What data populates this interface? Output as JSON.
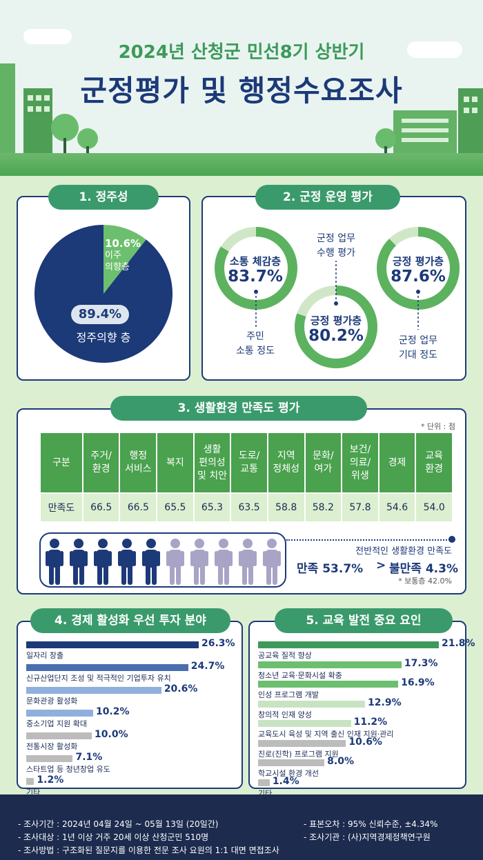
{
  "header": {
    "subtitle": "2024년 산청군 민선8기 상반기",
    "title": "군정평가 및 행정수요조사"
  },
  "section1": {
    "title": "1. 정주성",
    "move_pct": "10.6%",
    "move_label": "이주\n의향층",
    "stay_pct": "89.4%",
    "stay_label": "정주의향 층",
    "chart_data": {
      "type": "pie",
      "categories": [
        "이주 의향층",
        "정주의향 층"
      ],
      "values": [
        10.6,
        89.4
      ],
      "colors": [
        "#6cbf6e",
        "#1c3978"
      ]
    }
  },
  "section2": {
    "title": "2. 군정 운영 평가",
    "donuts": [
      {
        "label": "소통 체감층",
        "value": "83.7%",
        "caption": "주민\n소통 정도",
        "num": 83.7
      },
      {
        "label": "긍정 평가층",
        "value": "80.2%",
        "caption": "군정 업무\n수행 평가",
        "num": 80.2
      },
      {
        "label": "긍정 평가층",
        "value": "87.6%",
        "caption": "군정 업무\n기대 정도",
        "num": 87.6
      }
    ],
    "ring_color": "#5cb25f",
    "ring_bg": "#cfe7c6"
  },
  "section3": {
    "title": "3. 생활환경 만족도 평가",
    "unit": "* 단위 : 점",
    "headers": [
      "구분",
      "주거/\n환경",
      "행정\n서비스",
      "복지",
      "생활\n편의성\n및 치안",
      "도로/\n교통",
      "지역\n정체성",
      "문화/\n여가",
      "보건/\n의료/\n위생",
      "경제",
      "교육\n환경"
    ],
    "row_label": "만족도",
    "values": [
      "66.5",
      "66.5",
      "65.5",
      "65.3",
      "63.5",
      "58.8",
      "58.2",
      "57.8",
      "54.6",
      "54.0"
    ],
    "overall_label": "전반적인 생활환경 만족도",
    "satisfied": "만족 53.7%",
    "gt": ">",
    "dissatisfied": "불만족 4.3%",
    "normal": "* 보통층 42.0%",
    "people_filled": 5,
    "people_total": 10
  },
  "section4": {
    "title": "4. 경제 활성화 우선 투자 분야",
    "chart_data": {
      "type": "bar",
      "categories": [
        "일자리 창출",
        "신규산업단지 조성 및 적극적인 기업투자 유치",
        "문화관광 활성화",
        "중소기업 지원 확대",
        "전통시장 활성화",
        "스타트업 등 청년창업 유도",
        "기타"
      ],
      "values": [
        26.3,
        24.7,
        20.6,
        10.2,
        10.0,
        7.1,
        1.2
      ]
    },
    "value_labels": [
      "26.3%",
      "24.7%",
      "20.6%",
      "10.2%",
      "10.0%",
      "7.1%",
      "1.2%"
    ],
    "colors": [
      "#1c3978",
      "#4a6fb0",
      "#8fb0dc",
      "#8fb0dc",
      "#bcbcbc",
      "#bcbcbc",
      "#bcbcbc"
    ]
  },
  "section5": {
    "title": "5. 교육 발전 중요 요인",
    "chart_data": {
      "type": "bar",
      "categories": [
        "공교육 질적 향상",
        "청소년 교육·문화시설 확충",
        "인성 프로그램 개발",
        "창의적 인재 양성",
        "교육도시 육성 및 지역 출신 인재 지원·관리",
        "진로(진학) 프로그램 지원",
        "학교시설 환경 개선",
        "기타"
      ],
      "values": [
        21.8,
        17.3,
        16.9,
        12.9,
        11.2,
        10.6,
        8.0,
        1.4
      ]
    },
    "value_labels": [
      "21.8%",
      "17.3%",
      "16.9%",
      "12.9%",
      "11.2%",
      "10.6%",
      "8.0%",
      "1.4%"
    ],
    "colors": [
      "#3d9a5a",
      "#6cbf6e",
      "#6cbf6e",
      "#c8e3c2",
      "#c8e3c2",
      "#bcbcbc",
      "#bcbcbc",
      "#bcbcbc"
    ]
  },
  "footer": {
    "period": "- 조사기간 : 2024년 04월 24일 ~ 05월 13일 (20일간)",
    "target": "- 조사대상 : 1년 이상 거주 20세 이상 산청군민 510명",
    "method": "- 조사방법 : 구조화된 질문지를 이용한 전문 조사 요원의 1:1 대면 면접조사",
    "error": "- 표본오차 : 95% 신뢰수준, ±4.34%",
    "agency": "- 조사기관 : (사)지역경제정책연구원"
  }
}
